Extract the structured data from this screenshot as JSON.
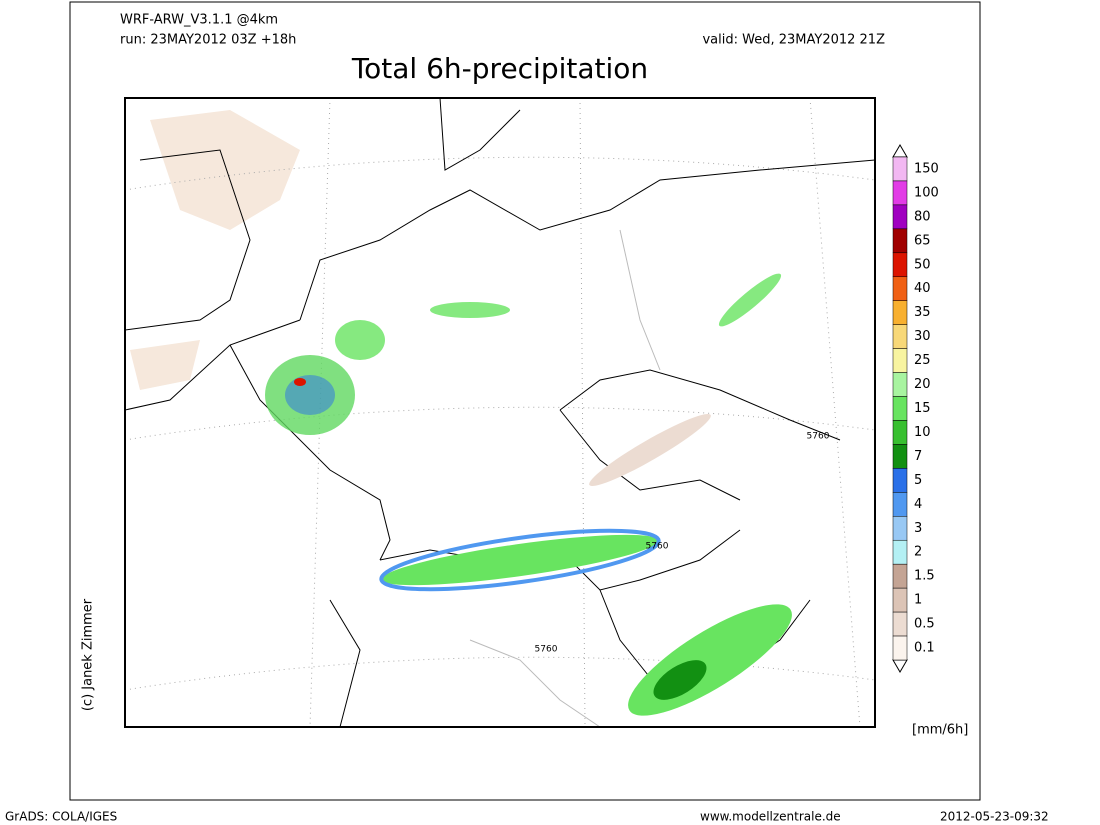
{
  "header": {
    "model": "WRF-ARW_V3.1.1 @4km",
    "run": "run: 23MAY2012 03Z +18h",
    "valid": "valid: Wed, 23MAY2012 21Z",
    "title": "Total 6h-precipitation"
  },
  "contour_labels": [
    "5760",
    "5760",
    "5760"
  ],
  "colorbar": {
    "levels": [
      150,
      100,
      80,
      65,
      50,
      40,
      35,
      30,
      25,
      20,
      15,
      10,
      7,
      5,
      4,
      3,
      2,
      1.5,
      1,
      0.5,
      0.1
    ],
    "colors": [
      "#f2b8f2",
      "#e23ce6",
      "#a000c0",
      "#a00000",
      "#dc1400",
      "#f06014",
      "#f8b030",
      "#f8d878",
      "#f8f4a0",
      "#a8f4a0",
      "#68e460",
      "#38c030",
      "#129012",
      "#2a70e8",
      "#5098f0",
      "#98c8f4",
      "#b4f0f4",
      "#c4a494",
      "#dcc4b6",
      "#ecdcd2",
      "#fbf4ee"
    ],
    "unit": "[mm/6h]"
  },
  "credit": "(c) Janek Zimmer",
  "footer": {
    "software": "GrADS: COLA/IGES",
    "website": "www.modellzentrale.de",
    "timestamp": "2012-05-23-09:32"
  }
}
